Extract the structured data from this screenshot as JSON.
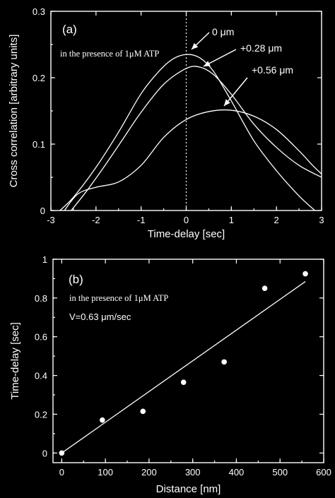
{
  "chart_data": [
    {
      "type": "line",
      "panel_label": "(a)",
      "note": "in the presence of 1μM ATP",
      "xlabel": "Time-delay  [sec]",
      "ylabel": "Cross correlation [arbitrary units]",
      "xlim": [
        -3,
        3
      ],
      "ylim": [
        0,
        0.3
      ],
      "xticks": [
        "-3",
        "-2",
        "-1",
        "0",
        "1",
        "2",
        "3"
      ],
      "yticks": [
        "0",
        "0.1",
        "0.2",
        "0.3"
      ],
      "series": [
        {
          "name": "0 μm",
          "x": [
            -2.8,
            -2.5,
            -2,
            -1.5,
            -1,
            -0.6,
            -0.3,
            0,
            0.3,
            0.6,
            1,
            1.5,
            2,
            2.5,
            2.85
          ],
          "y": [
            0.0,
            0.02,
            0.065,
            0.118,
            0.176,
            0.21,
            0.228,
            0.235,
            0.23,
            0.21,
            0.165,
            0.105,
            0.06,
            0.022,
            0.0
          ]
        },
        {
          "name": "+0.28 μm",
          "x": [
            -2.55,
            -2.2,
            -1.8,
            -1.4,
            -1,
            -0.5,
            0,
            0.3,
            0.6,
            1,
            1.5,
            2,
            2.5,
            3
          ],
          "y": [
            0.0,
            0.03,
            0.068,
            0.108,
            0.148,
            0.19,
            0.214,
            0.216,
            0.205,
            0.175,
            0.13,
            0.095,
            0.068,
            0.05
          ]
        },
        {
          "name": "+0.56 μm",
          "x": [
            -2.7,
            -2.4,
            -2,
            -1.5,
            -1,
            -0.5,
            0,
            0.5,
            1,
            1.5,
            2,
            2.5,
            2.8,
            3
          ],
          "y": [
            0.0,
            0.025,
            0.035,
            0.043,
            0.068,
            0.11,
            0.137,
            0.149,
            0.151,
            0.142,
            0.122,
            0.09,
            0.068,
            0.055
          ]
        }
      ]
    },
    {
      "type": "scatter",
      "panel_label": "(b)",
      "note": "in the presence of 1μM ATP",
      "note2": "V=0.63 μm/sec",
      "xlabel": "Distance [nm]",
      "ylabel": "Time-delay [sec]",
      "xlim": [
        -20,
        600
      ],
      "ylim": [
        -0.05,
        1.0
      ],
      "xticks": [
        "0",
        "100",
        "200",
        "300",
        "400",
        "500",
        "600"
      ],
      "yticks": [
        "0",
        "0.2",
        "0.4",
        "0.6",
        "0.8",
        "1"
      ],
      "points": {
        "x": [
          0,
          93,
          186,
          279,
          372,
          465,
          558
        ],
        "y": [
          0.0,
          0.17,
          0.215,
          0.365,
          0.47,
          0.85,
          0.925
        ]
      },
      "fit_line": {
        "x": [
          0,
          558
        ],
        "y": [
          0.0,
          0.885
        ]
      }
    }
  ]
}
